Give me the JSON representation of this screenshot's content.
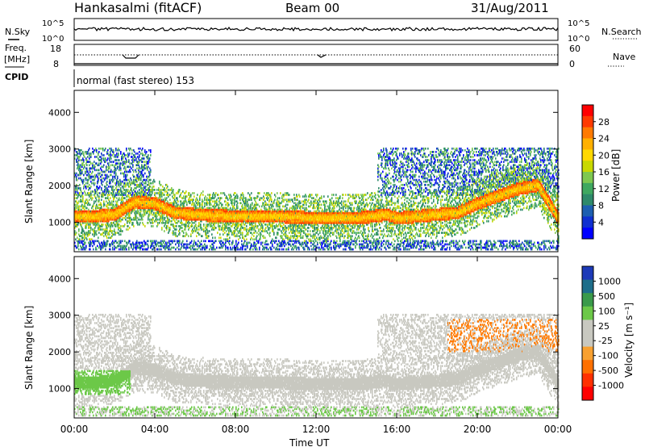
{
  "header": {
    "station": "Hankasalmi (fitACF)",
    "beam": "Beam 00",
    "date": "31/Aug/2011"
  },
  "strip": {
    "nsky_label": "N.Sky",
    "nsky_ticks": [
      "10^5",
      "10^0"
    ],
    "nsearch_label": "N.Search",
    "nsearch_ticks": [
      "10^5",
      "10^0"
    ],
    "freq_label": "Freq.",
    "freq_unit": "[MHz]",
    "freq_ticks": [
      "18",
      "8"
    ],
    "nave_label": "Nave",
    "nave_ticks": [
      "60",
      "0"
    ],
    "cpid_label": "CPID",
    "cpid_text": "normal (fast stereo) 153"
  },
  "axes": {
    "ylabel": "Slant Range [km]",
    "xlabel": "Time UT",
    "y_ticks": [
      "4000",
      "3000",
      "2000",
      "1000"
    ],
    "x_ticks": [
      "00:00",
      "04:00",
      "08:00",
      "12:00",
      "16:00",
      "20:00",
      "00:00"
    ]
  },
  "colorbars": {
    "power": {
      "label": "Power [dB]",
      "ticks": [
        "28",
        "24",
        "20",
        "16",
        "12",
        "8",
        "4"
      ],
      "colors": [
        "#ff0000",
        "#ff3a00",
        "#ff7a00",
        "#ffb000",
        "#ffd800",
        "#c8d800",
        "#7ec850",
        "#3fa860",
        "#2e8a6a",
        "#1d5fb0",
        "#1030d0",
        "#0000ff"
      ]
    },
    "velocity": {
      "label": "Velocity [m s⁻¹]",
      "ticks": [
        "1000",
        "500",
        "100",
        "25",
        "-25",
        "-100",
        "-500",
        "-1000"
      ],
      "colors": [
        "#1d3ab8",
        "#1e6e8a",
        "#3a9a4a",
        "#6cc848",
        "#c8c8c0",
        "#c8c8c0",
        "#f8a030",
        "#ff7000",
        "#ff3000",
        "#ff0000"
      ]
    }
  },
  "chart_data": [
    {
      "type": "heatmap",
      "title": "Power",
      "xlabel": "Time UT",
      "ylabel": "Slant Range [km]",
      "x_range_hours": [
        0,
        24
      ],
      "ylim": [
        200,
        4600
      ],
      "colorbar": {
        "label": "Power [dB]",
        "range": [
          0,
          30
        ]
      },
      "main_echo_range_km": {
        "hours": [
          0,
          1,
          2,
          3,
          4,
          5,
          6,
          8,
          10,
          12,
          14,
          15.5,
          16,
          18,
          19,
          20,
          21,
          22,
          23,
          24
        ],
        "values": [
          1150,
          1150,
          1200,
          1550,
          1500,
          1250,
          1200,
          1150,
          1150,
          1100,
          1100,
          1200,
          1100,
          1200,
          1250,
          1500,
          1700,
          1900,
          2000,
          1100
        ]
      }
    },
    {
      "type": "heatmap",
      "title": "Velocity",
      "xlabel": "Time UT",
      "ylabel": "Slant Range [km]",
      "x_range_hours": [
        0,
        24
      ],
      "ylim": [
        200,
        4600
      ],
      "colorbar": {
        "label": "Velocity [m s⁻¹]",
        "range": [
          -1000,
          1000
        ]
      }
    }
  ]
}
